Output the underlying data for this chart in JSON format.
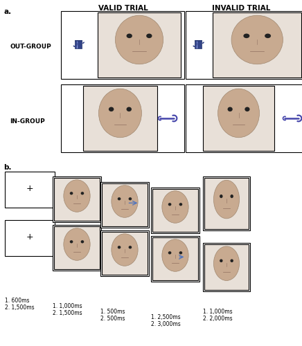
{
  "fig_width": 4.36,
  "fig_height": 5.0,
  "dpi": 100,
  "bg_color": "#ffffff",
  "label_a": "a.",
  "label_b": "b.",
  "valid_trial_label": "VALID TRIAL",
  "invalid_trial_label": "INVALID TRIAL",
  "out_group_label": "OUT-GROUP",
  "in_group_label": "IN-GROUP",
  "face_bg": "#d8c8b8",
  "face_border": "#000000",
  "box_color": "#000000",
  "timing_labels": [
    "1. 600ms\n2. 1,500ms",
    "1. 1,000ms\n2. 1,500ms",
    "1. 500ms\n2. 500ms",
    "1. 2,500ms\n2. 3,000ms",
    "1. 1,000ms\n2. 2,000ms"
  ],
  "font_size_headers": 7.5,
  "font_size_labels": 6.5,
  "font_size_timing": 5.5,
  "arrow_color": "#4444aa",
  "icon_color": "#4444aa"
}
